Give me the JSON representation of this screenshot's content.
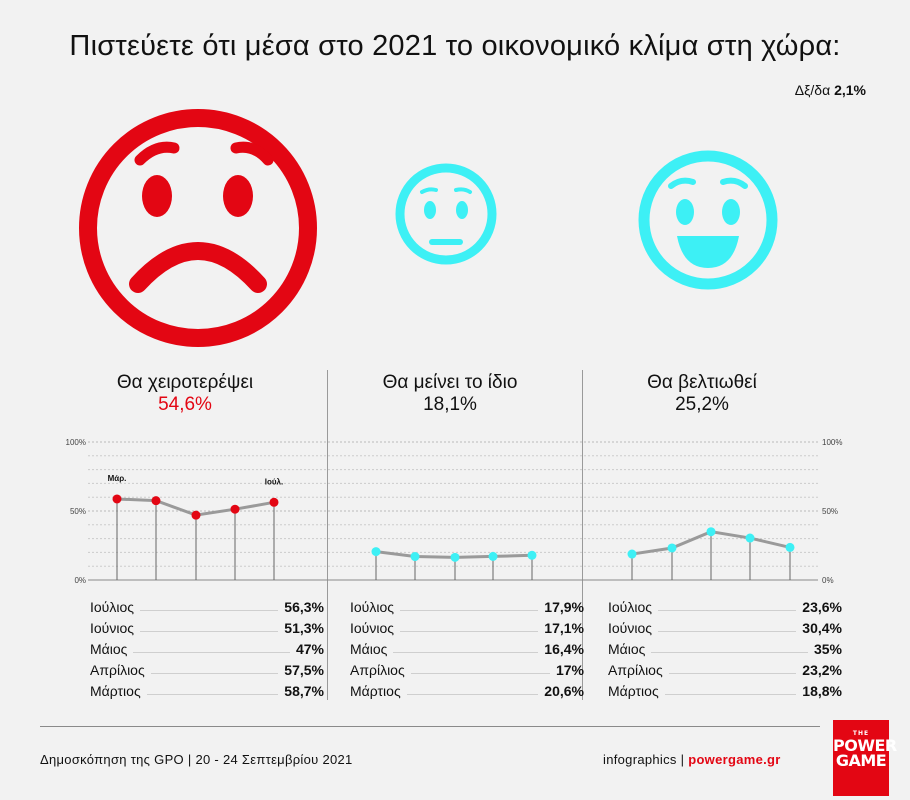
{
  "title": "Πιστεύετε ότι μέσα στο 2021 το οικονομικό κλίμα στη χώρα:",
  "dk": {
    "label": "Δξ/δα",
    "value": "2,1%"
  },
  "colors": {
    "negative": "#e30613",
    "neutral": "#3df0f5",
    "positive": "#3df0f5",
    "line": "#9a9a9a"
  },
  "faces": [
    {
      "icon": "sad-face-icon"
    },
    {
      "icon": "neutral-face-icon"
    },
    {
      "icon": "happy-face-icon"
    }
  ],
  "columns": [
    {
      "label": "Θα χειροτερέψει",
      "total": "54,6%",
      "rows": [
        {
          "month": "Ιούλιος",
          "value": "56,3%"
        },
        {
          "month": "Ιούνιος",
          "value": "51,3%"
        },
        {
          "month": "Μάιος",
          "value": "47%"
        },
        {
          "month": "Απρίλιος",
          "value": "57,5%"
        },
        {
          "month": "Μάρτιος",
          "value": "58,7%"
        }
      ]
    },
    {
      "label": "Θα μείνει το ίδιο",
      "total": "18,1%",
      "rows": [
        {
          "month": "Ιούλιος",
          "value": "17,9%"
        },
        {
          "month": "Ιούνιος",
          "value": "17,1%"
        },
        {
          "month": "Μάιος",
          "value": "16,4%"
        },
        {
          "month": "Απρίλιος",
          "value": "17%"
        },
        {
          "month": "Μάρτιος",
          "value": "20,6%"
        }
      ]
    },
    {
      "label": "Θα βελτιωθεί",
      "total": "25,2%",
      "rows": [
        {
          "month": "Ιούλιος",
          "value": "23,6%"
        },
        {
          "month": "Ιούνιος",
          "value": "30,4%"
        },
        {
          "month": "Μάιος",
          "value": "35%"
        },
        {
          "month": "Απρίλιος",
          "value": "23,2%"
        },
        {
          "month": "Μάρτιος",
          "value": "18,8%"
        }
      ]
    }
  ],
  "chart_data": {
    "type": "line",
    "x": [
      "Μάρ.",
      "Απρ.",
      "Μάι.",
      "Ιούν.",
      "Ιούλ."
    ],
    "x_tick_labels_shown": [
      "Μάρ.",
      "Ιούλ."
    ],
    "y_tick_labels": [
      "100%",
      "50%",
      "0%"
    ],
    "ylim": [
      0,
      100
    ],
    "grid": true,
    "series": [
      {
        "name": "Θα χειροτερέψει",
        "color": "#e30613",
        "values": [
          58.7,
          57.5,
          47,
          51.3,
          56.3
        ]
      },
      {
        "name": "Θα μείνει το ίδιο",
        "color": "#3df0f5",
        "values": [
          20.6,
          17,
          16.4,
          17.1,
          17.9
        ]
      },
      {
        "name": "Θα βελτιωθεί",
        "color": "#3df0f5",
        "values": [
          18.8,
          23.2,
          35,
          30.4,
          23.6
        ]
      }
    ]
  },
  "footer": {
    "source": "Δημοσκόπηση της GPO | 20 - 24 Σεπτεμβρίου 2021",
    "credit": "infographics | ",
    "website": "powergame.gr"
  },
  "logo": {
    "small": "THE",
    "line1": "POWER",
    "line2": "GAME"
  }
}
